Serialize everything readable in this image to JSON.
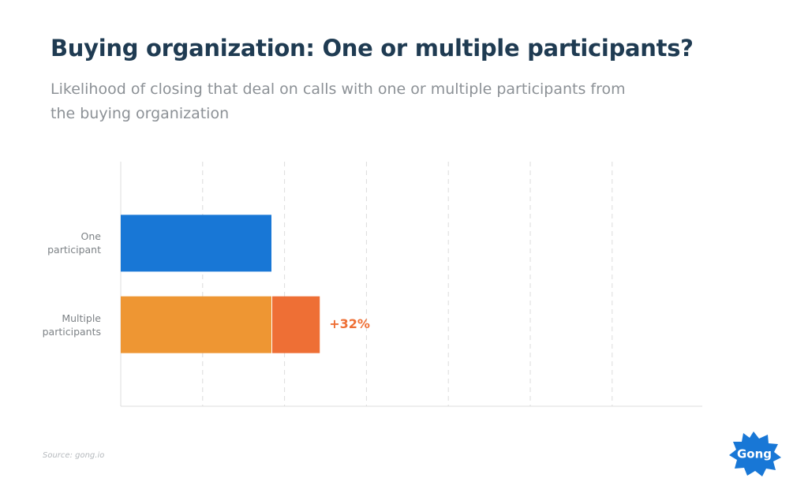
{
  "chart_data": {
    "type": "bar",
    "orientation": "horizontal",
    "title": "Buying organization: One or multiple participants?",
    "subtitle": "Likelihood of closing that deal on calls with one or multiple participants from the buying organization",
    "categories": [
      "One participant",
      "Multiple participants"
    ],
    "values": [
      1.84,
      1.84
    ],
    "colors": [
      "#1877d6",
      "#ee9633"
    ],
    "increase": {
      "values": [
        null,
        0.59
      ],
      "color": "#ee6f35"
    },
    "annotation": "+32%",
    "xlim": [
      0,
      7.1
    ],
    "xticks": [
      1,
      2,
      3,
      4,
      5,
      6
    ],
    "grid": true,
    "source": "Source: gong.io",
    "logo": "Gong"
  }
}
